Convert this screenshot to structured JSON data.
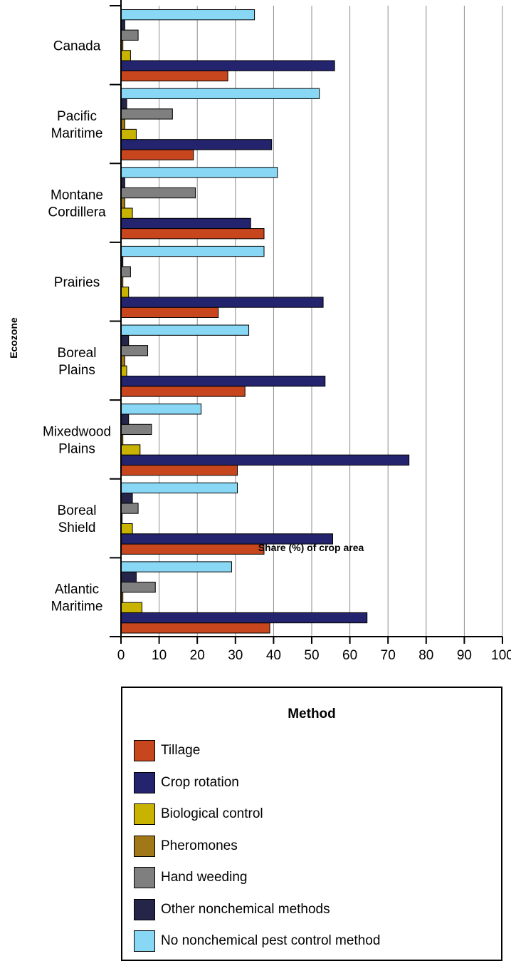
{
  "chart_data": {
    "type": "bar",
    "orientation": "horizontal",
    "title": "",
    "xlabel": "Share (%) of crop area",
    "ylabel": "Ecozone",
    "xlim": [
      0,
      100
    ],
    "xticks": [
      0,
      10,
      20,
      30,
      40,
      50,
      60,
      70,
      80,
      90,
      100
    ],
    "grid": true,
    "legend_title": "Method",
    "legend_placement": "bottom",
    "categories": [
      [
        "Canada"
      ],
      [
        "Pacific",
        "Maritime"
      ],
      [
        "Montane",
        "Cordillera"
      ],
      [
        "Prairies"
      ],
      [
        "Boreal",
        "Plains"
      ],
      [
        "Mixedwood",
        "Plains"
      ],
      [
        "Boreal",
        "Shield"
      ],
      [
        "Atlantic",
        "Maritime"
      ]
    ],
    "series": [
      {
        "name": "Tillage",
        "color": "#c8461e",
        "values": [
          28,
          19,
          37.5,
          25.5,
          32.5,
          30.5,
          37.5,
          39
        ]
      },
      {
        "name": "Crop rotation",
        "color": "#23236e",
        "values": [
          56,
          39.5,
          34,
          53,
          53.5,
          75.5,
          55.5,
          64.5
        ]
      },
      {
        "name": "Biological control",
        "color": "#c8b400",
        "values": [
          2.5,
          4,
          3,
          2,
          1.5,
          5,
          3,
          5.5
        ]
      },
      {
        "name": "Pheromones",
        "color": "#a07818",
        "values": [
          0.5,
          1,
          1,
          0.5,
          1,
          0.5,
          0.3,
          0.5
        ]
      },
      {
        "name": "Hand weeding",
        "color": "#7f7f7f",
        "values": [
          4.5,
          13.5,
          19.5,
          2.5,
          7,
          8,
          4.5,
          9
        ]
      },
      {
        "name": "Other nonchemical methods",
        "color": "#25254a",
        "values": [
          1,
          1.5,
          1,
          0.5,
          2,
          2,
          3,
          4
        ]
      },
      {
        "name": "No nonchemical pest control method",
        "color": "#87d7f5",
        "values": [
          35,
          52,
          41,
          37.5,
          33.5,
          21,
          30.5,
          29
        ]
      }
    ]
  }
}
